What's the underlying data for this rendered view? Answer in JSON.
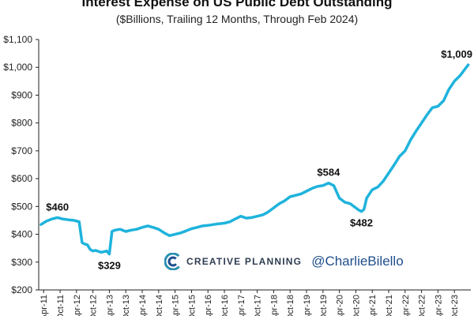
{
  "header": {
    "title": "Interest Expense on US Public Debt Outstanding",
    "subtitle": "($Billions, Trailing 12 Months, Through Feb 2024)"
  },
  "watermark": {
    "brand": "CREATIVE PLANNING",
    "handle": "@CharlieBilello",
    "colors": {
      "teal": "#2a8fb0",
      "navy": "#1f4e8c",
      "dark": "#2f3d52"
    }
  },
  "chart_data": {
    "type": "line",
    "title": "Interest Expense on US Public Debt Outstanding",
    "subtitle": "($Billions, Trailing 12 Months, Through Feb 2024)",
    "xlabel": "",
    "ylabel": "",
    "ylim": [
      200,
      1100
    ],
    "yticks": [
      200,
      300,
      400,
      500,
      600,
      700,
      800,
      900,
      1000,
      1100
    ],
    "ytick_labels": [
      "$200",
      "$300",
      "$400",
      "$500",
      "$600",
      "$700",
      "$800",
      "$900",
      "$1,000",
      "$1,100"
    ],
    "xticks": [
      2011.25,
      2011.75,
      2012.25,
      2012.75,
      2013.25,
      2013.75,
      2014.25,
      2014.75,
      2015.25,
      2015.75,
      2016.25,
      2016.75,
      2017.25,
      2017.75,
      2018.25,
      2018.75,
      2019.25,
      2019.75,
      2020.25,
      2020.75,
      2021.25,
      2021.75,
      2022.25,
      2022.75,
      2023.25,
      2023.75
    ],
    "xtick_labels": [
      "Apr-11",
      "Oct-11",
      "Apr-12",
      "Oct-12",
      "Apr-13",
      "Oct-13",
      "Apr-14",
      "Oct-14",
      "Apr-15",
      "Oct-15",
      "Apr-16",
      "Oct-16",
      "Apr-17",
      "Oct-17",
      "Apr-18",
      "Oct-18",
      "Apr-19",
      "Oct-19",
      "Apr-20",
      "Oct-20",
      "Apr-21",
      "Oct-21",
      "Apr-22",
      "Oct-22",
      "Apr-23",
      "Oct-23"
    ],
    "xlim": [
      2011.1,
      2024.25
    ],
    "line_color": "#1fb3dc",
    "grid": false,
    "series": [
      {
        "x": [
          2011.17,
          2011.33,
          2011.5,
          2011.67,
          2011.83,
          2012.0,
          2012.17,
          2012.33,
          2012.42,
          2012.5,
          2012.58,
          2012.67,
          2012.75,
          2012.83,
          2013.0,
          2013.17,
          2013.25,
          2013.33,
          2013.42,
          2013.58,
          2013.75,
          2013.92,
          2014.08,
          2014.25,
          2014.42,
          2014.58,
          2014.75,
          2014.92,
          2015.08,
          2015.25,
          2015.42,
          2015.58,
          2015.75,
          2015.92,
          2016.08,
          2016.25,
          2016.42,
          2016.58,
          2016.75,
          2016.92,
          2017.08,
          2017.25,
          2017.42,
          2017.58,
          2017.75,
          2017.92,
          2018.08,
          2018.25,
          2018.42,
          2018.58,
          2018.75,
          2018.92,
          2019.08,
          2019.25,
          2019.42,
          2019.58,
          2019.75,
          2019.92,
          2020.08,
          2020.25,
          2020.42,
          2020.58,
          2020.75,
          2020.83,
          2020.92,
          2021.0,
          2021.08,
          2021.25,
          2021.42,
          2021.58,
          2021.75,
          2021.92,
          2022.08,
          2022.25,
          2022.42,
          2022.58,
          2022.75,
          2022.92,
          2023.08,
          2023.25,
          2023.42,
          2023.58,
          2023.75,
          2023.92,
          2024.08,
          2024.17
        ],
        "y": [
          435,
          447,
          455,
          460,
          455,
          452,
          450,
          445,
          370,
          365,
          362,
          345,
          340,
          342,
          335,
          340,
          329,
          410,
          415,
          418,
          410,
          415,
          418,
          425,
          430,
          425,
          418,
          405,
          395,
          400,
          405,
          412,
          420,
          425,
          430,
          432,
          435,
          438,
          440,
          445,
          455,
          465,
          458,
          460,
          465,
          470,
          480,
          495,
          510,
          520,
          535,
          540,
          545,
          555,
          565,
          572,
          575,
          584,
          575,
          530,
          515,
          510,
          495,
          488,
          482,
          490,
          530,
          560,
          570,
          590,
          620,
          650,
          680,
          700,
          740,
          770,
          800,
          830,
          855,
          860,
          880,
          920,
          950,
          970,
          995,
          1009
        ]
      }
    ],
    "annotations": [
      {
        "x": 2011.67,
        "y": 460,
        "text": "$460",
        "position": "above"
      },
      {
        "x": 2013.25,
        "y": 329,
        "text": "$329",
        "position": "below"
      },
      {
        "x": 2019.92,
        "y": 584,
        "text": "$584",
        "position": "above"
      },
      {
        "x": 2020.92,
        "y": 482,
        "text": "$482",
        "position": "below"
      },
      {
        "x": 2024.17,
        "y": 1009,
        "text": "$1,009",
        "position": "above"
      }
    ]
  }
}
